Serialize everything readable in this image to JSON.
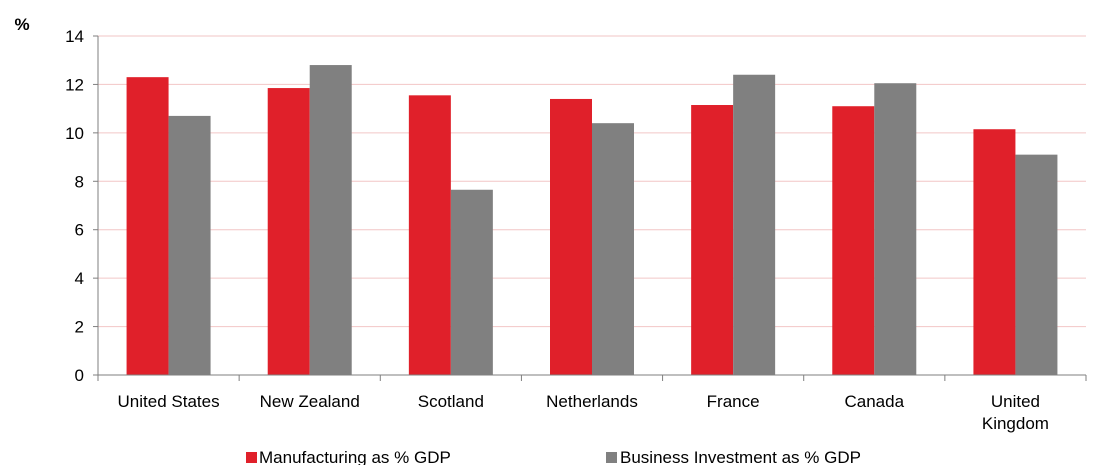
{
  "colors": {
    "manufacturing": "#E0202A",
    "investment": "#808080",
    "gridline": "#F2C6C6",
    "axis": "#7F7F7F",
    "background": "#FFFFFF"
  },
  "chart_data": {
    "type": "bar",
    "title": "",
    "xlabel": "",
    "ylabel": "%",
    "ylim": [
      0,
      14
    ],
    "yticks": [
      0,
      2,
      4,
      6,
      8,
      10,
      12,
      14
    ],
    "grid": true,
    "legend_position": "bottom",
    "categories": [
      [
        "United States"
      ],
      [
        "New Zealand"
      ],
      [
        "Scotland"
      ],
      [
        "Netherlands"
      ],
      [
        "France"
      ],
      [
        "Canada"
      ],
      [
        "United",
        "Kingdom"
      ]
    ],
    "series": [
      {
        "name": "Manufacturing as % GDP",
        "color_key": "manufacturing",
        "values": [
          12.3,
          11.85,
          11.55,
          11.4,
          11.15,
          11.1,
          10.15
        ]
      },
      {
        "name": "Business Investment as % GDP",
        "color_key": "investment",
        "values": [
          10.7,
          12.8,
          7.65,
          10.4,
          12.4,
          12.05,
          9.1
        ]
      }
    ]
  }
}
